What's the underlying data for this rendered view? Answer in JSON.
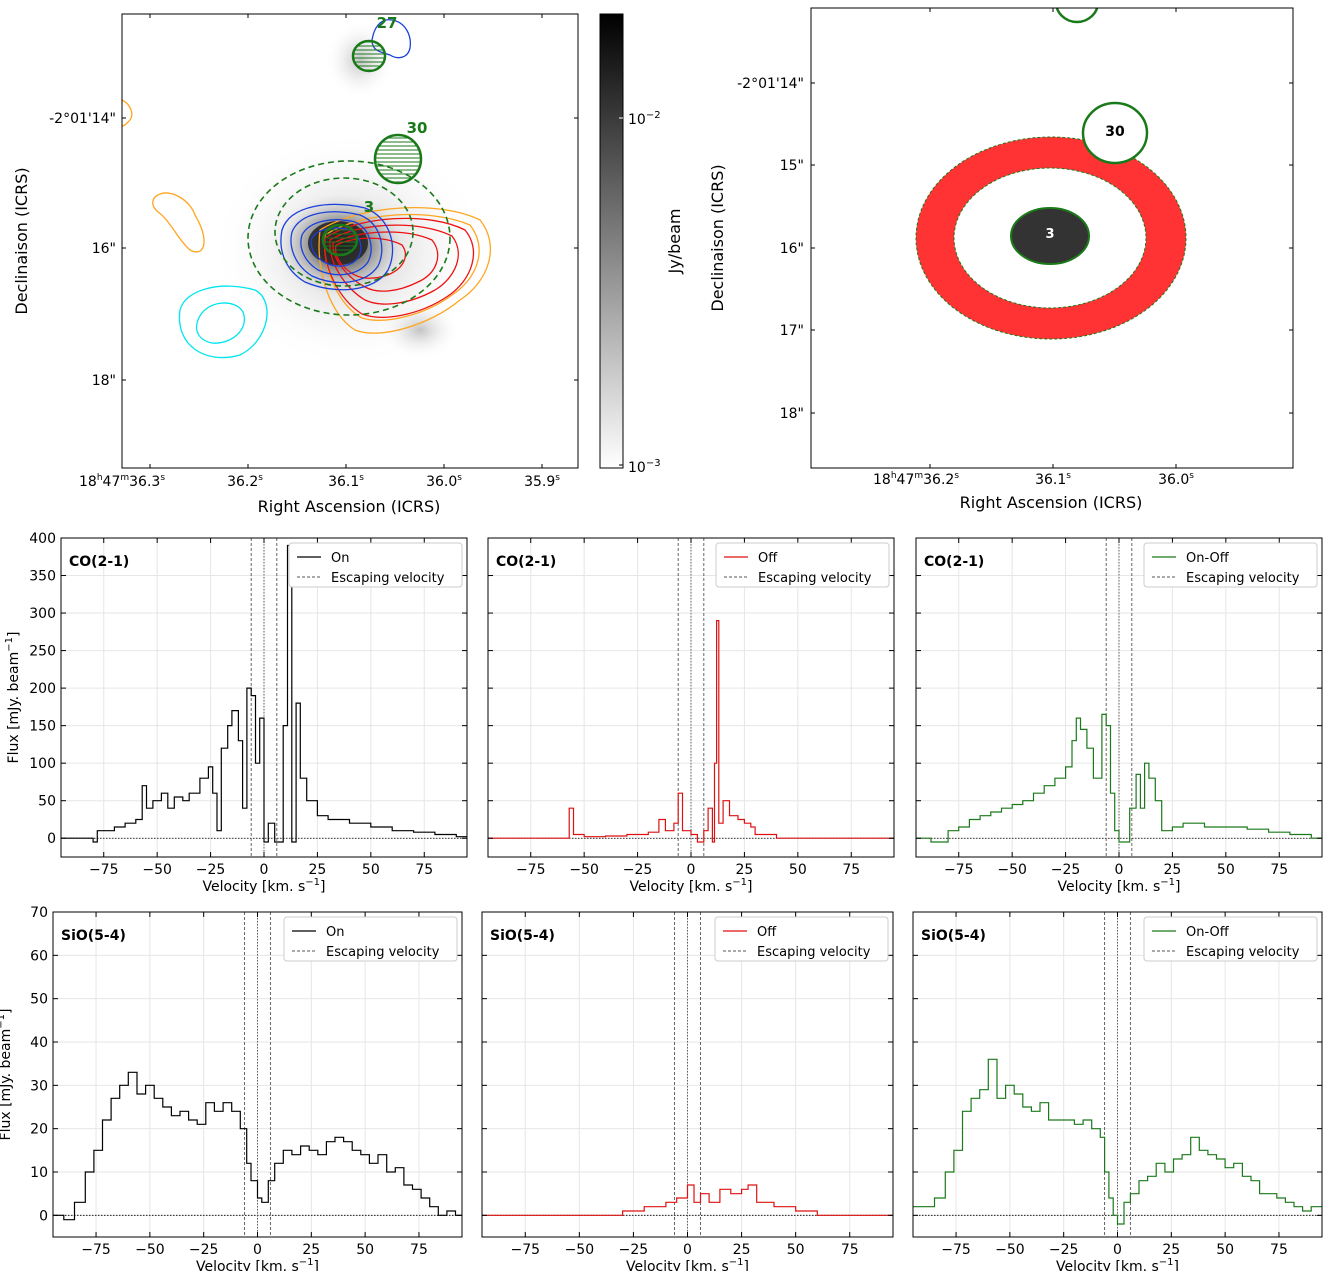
{
  "maps": {
    "left": {
      "xlabel": "Right Ascension (ICRS)",
      "ylabel": "Declinaison (ICRS)",
      "xticks": [
        {
          "main": "18",
          "h": "h",
          "m_val": "47",
          "m": "m",
          "s_val": "36.3",
          "s": "s"
        },
        {
          "main": "36.2",
          "s": "s"
        },
        {
          "main": "36.1",
          "s": "s"
        },
        {
          "main": "36.0",
          "s": "s"
        },
        {
          "main": "35.9",
          "s": "s"
        }
      ],
      "yticks": [
        "-2°01'14\"",
        "16\"",
        "18\""
      ],
      "colorbar": {
        "label": "Jy/beam",
        "tick_hi": "10",
        "tick_hi_exp": "−2",
        "tick_lo": "10",
        "tick_lo_exp": "−3"
      },
      "sources": [
        "27",
        "30",
        "3"
      ]
    },
    "right": {
      "xlabel": "Right Ascension (ICRS)",
      "ylabel": "Declinaison (ICRS)",
      "xticks": [
        {
          "main": "18",
          "h": "h",
          "m_val": "47",
          "m": "m",
          "s_val": "36.2",
          "s": "s"
        },
        {
          "main": "36.1",
          "s": "s"
        },
        {
          "main": "36.0",
          "s": "s"
        }
      ],
      "yticks": [
        "-2°01'14\"",
        "15\"",
        "16\"",
        "17\"",
        "18\""
      ],
      "sources": [
        "30",
        "3"
      ]
    }
  },
  "spectra_common": {
    "xlabel": "Velocity [km. s",
    "xlabel_sup": "−1",
    "xlabel_end": "]",
    "ylabel": "Flux [mJy. beam",
    "ylabel_sup": "−1",
    "ylabel_end": "]",
    "escape_label": "Escaping velocity",
    "xtick_labels": [
      "−75",
      "−50",
      "−25",
      "0",
      "25",
      "50",
      "75"
    ]
  },
  "chart_data": [
    {
      "type": "line",
      "line": "CO(2-1)",
      "series": [
        {
          "name": "On"
        }
      ],
      "color": "#000000",
      "xlim": [
        -95,
        95
      ],
      "ylim": [
        -25,
        400
      ],
      "yticks": [
        "0",
        "50",
        "100",
        "150",
        "200",
        "250",
        "300",
        "350",
        "400"
      ],
      "escape_velocities": [
        -6,
        0,
        6
      ],
      "points": [
        [
          -95,
          0
        ],
        [
          -88,
          0
        ],
        [
          -80,
          -5
        ],
        [
          -78,
          10
        ],
        [
          -70,
          15
        ],
        [
          -65,
          20
        ],
        [
          -60,
          25
        ],
        [
          -57,
          70
        ],
        [
          -55,
          40
        ],
        [
          -52,
          50
        ],
        [
          -48,
          60
        ],
        [
          -45,
          40
        ],
        [
          -42,
          55
        ],
        [
          -38,
          50
        ],
        [
          -35,
          60
        ],
        [
          -30,
          80
        ],
        [
          -26,
          95
        ],
        [
          -24,
          60
        ],
        [
          -22,
          10
        ],
        [
          -20,
          120
        ],
        [
          -17,
          150
        ],
        [
          -15,
          170
        ],
        [
          -12,
          130
        ],
        [
          -10,
          40
        ],
        [
          -8,
          200
        ],
        [
          -6,
          190
        ],
        [
          -4,
          100
        ],
        [
          -2,
          160
        ],
        [
          0,
          -5
        ],
        [
          2,
          20
        ],
        [
          5,
          -5
        ],
        [
          7,
          -5
        ],
        [
          9,
          150
        ],
        [
          11,
          390
        ],
        [
          13,
          -5
        ],
        [
          15,
          180
        ],
        [
          17,
          80
        ],
        [
          20,
          50
        ],
        [
          25,
          30
        ],
        [
          30,
          25
        ],
        [
          40,
          20
        ],
        [
          50,
          15
        ],
        [
          60,
          10
        ],
        [
          70,
          8
        ],
        [
          80,
          5
        ],
        [
          90,
          2
        ],
        [
          95,
          0
        ]
      ]
    },
    {
      "type": "line",
      "line": "CO(2-1)",
      "series": [
        {
          "name": "Off"
        }
      ],
      "color": "#dd1111",
      "xlim": [
        -95,
        95
      ],
      "ylim": [
        -25,
        400
      ],
      "yticks": [],
      "escape_velocities": [
        -6,
        0,
        6
      ],
      "points": [
        [
          -95,
          0
        ],
        [
          -60,
          0
        ],
        [
          -57,
          40
        ],
        [
          -55,
          5
        ],
        [
          -50,
          2
        ],
        [
          -40,
          3
        ],
        [
          -30,
          5
        ],
        [
          -20,
          8
        ],
        [
          -15,
          25
        ],
        [
          -12,
          10
        ],
        [
          -8,
          20
        ],
        [
          -6,
          60
        ],
        [
          -4,
          10
        ],
        [
          0,
          5
        ],
        [
          3,
          -5
        ],
        [
          6,
          10
        ],
        [
          8,
          40
        ],
        [
          10,
          -5
        ],
        [
          11,
          100
        ],
        [
          12,
          290
        ],
        [
          13,
          20
        ],
        [
          15,
          50
        ],
        [
          18,
          30
        ],
        [
          22,
          25
        ],
        [
          25,
          20
        ],
        [
          28,
          15
        ],
        [
          30,
          5
        ],
        [
          40,
          0
        ],
        [
          95,
          0
        ]
      ]
    },
    {
      "type": "line",
      "line": "CO(2-1)",
      "series": [
        {
          "name": "On-Off"
        }
      ],
      "color": "#1a7a1a",
      "xlim": [
        -95,
        95
      ],
      "ylim": [
        -25,
        400
      ],
      "yticks": [],
      "escape_velocities": [
        -6,
        0,
        6
      ],
      "points": [
        [
          -95,
          0
        ],
        [
          -88,
          -5
        ],
        [
          -80,
          10
        ],
        [
          -75,
          15
        ],
        [
          -70,
          25
        ],
        [
          -65,
          30
        ],
        [
          -60,
          35
        ],
        [
          -55,
          40
        ],
        [
          -50,
          45
        ],
        [
          -45,
          50
        ],
        [
          -40,
          60
        ],
        [
          -35,
          70
        ],
        [
          -30,
          80
        ],
        [
          -25,
          95
        ],
        [
          -22,
          130
        ],
        [
          -20,
          160
        ],
        [
          -18,
          145
        ],
        [
          -15,
          120
        ],
        [
          -12,
          80
        ],
        [
          -8,
          165
        ],
        [
          -6,
          150
        ],
        [
          -4,
          60
        ],
        [
          -2,
          10
        ],
        [
          0,
          -5
        ],
        [
          3,
          -5
        ],
        [
          5,
          40
        ],
        [
          8,
          85
        ],
        [
          10,
          40
        ],
        [
          12,
          100
        ],
        [
          14,
          80
        ],
        [
          17,
          50
        ],
        [
          20,
          10
        ],
        [
          25,
          15
        ],
        [
          30,
          20
        ],
        [
          40,
          15
        ],
        [
          50,
          15
        ],
        [
          60,
          12
        ],
        [
          70,
          8
        ],
        [
          80,
          5
        ],
        [
          90,
          0
        ],
        [
          95,
          0
        ]
      ]
    },
    {
      "type": "line",
      "line": "SiO(5-4)",
      "series": [
        {
          "name": "On"
        }
      ],
      "color": "#000000",
      "xlim": [
        -95,
        95
      ],
      "ylim": [
        -5,
        70
      ],
      "yticks": [
        "0",
        "10",
        "20",
        "30",
        "40",
        "50",
        "60",
        "70"
      ],
      "escape_velocities": [
        -6,
        0,
        6
      ],
      "points": [
        [
          -95,
          0
        ],
        [
          -90,
          -1
        ],
        [
          -85,
          3
        ],
        [
          -80,
          10
        ],
        [
          -76,
          15
        ],
        [
          -72,
          22
        ],
        [
          -68,
          27
        ],
        [
          -64,
          30
        ],
        [
          -60,
          33
        ],
        [
          -56,
          28
        ],
        [
          -52,
          30
        ],
        [
          -48,
          27
        ],
        [
          -44,
          25
        ],
        [
          -40,
          23
        ],
        [
          -36,
          24
        ],
        [
          -32,
          22
        ],
        [
          -28,
          21
        ],
        [
          -24,
          26
        ],
        [
          -20,
          24
        ],
        [
          -16,
          26
        ],
        [
          -12,
          24
        ],
        [
          -8,
          20
        ],
        [
          -5,
          12
        ],
        [
          -3,
          8
        ],
        [
          0,
          4
        ],
        [
          2,
          3
        ],
        [
          5,
          8
        ],
        [
          8,
          12
        ],
        [
          12,
          15
        ],
        [
          16,
          14
        ],
        [
          20,
          16
        ],
        [
          24,
          15
        ],
        [
          28,
          14
        ],
        [
          32,
          17
        ],
        [
          36,
          18
        ],
        [
          40,
          17
        ],
        [
          44,
          15
        ],
        [
          48,
          14
        ],
        [
          52,
          12
        ],
        [
          56,
          14
        ],
        [
          60,
          10
        ],
        [
          64,
          11
        ],
        [
          68,
          7
        ],
        [
          72,
          6
        ],
        [
          76,
          4
        ],
        [
          80,
          2
        ],
        [
          84,
          0
        ],
        [
          88,
          1
        ],
        [
          92,
          0
        ],
        [
          95,
          0
        ]
      ]
    },
    {
      "type": "line",
      "line": "SiO(5-4)",
      "series": [
        {
          "name": "Off"
        }
      ],
      "color": "#dd1111",
      "xlim": [
        -95,
        95
      ],
      "ylim": [
        -5,
        70
      ],
      "yticks": [],
      "escape_velocities": [
        -6,
        0,
        6
      ],
      "points": [
        [
          -95,
          0
        ],
        [
          -60,
          0
        ],
        [
          -40,
          0
        ],
        [
          -30,
          1
        ],
        [
          -20,
          2
        ],
        [
          -10,
          3
        ],
        [
          -5,
          4
        ],
        [
          0,
          7
        ],
        [
          3,
          3
        ],
        [
          6,
          5
        ],
        [
          10,
          3
        ],
        [
          15,
          6
        ],
        [
          20,
          5
        ],
        [
          25,
          6
        ],
        [
          28,
          7
        ],
        [
          32,
          3
        ],
        [
          40,
          2
        ],
        [
          50,
          1
        ],
        [
          60,
          0
        ],
        [
          95,
          0
        ]
      ]
    },
    {
      "type": "line",
      "line": "SiO(5-4)",
      "series": [
        {
          "name": "On-Off"
        }
      ],
      "color": "#1a7a1a",
      "xlim": [
        -95,
        95
      ],
      "ylim": [
        -5,
        70
      ],
      "yticks": [],
      "escape_velocities": [
        -6,
        0,
        6
      ],
      "points": [
        [
          -95,
          2
        ],
        [
          -90,
          2
        ],
        [
          -85,
          4
        ],
        [
          -80,
          10
        ],
        [
          -76,
          15
        ],
        [
          -72,
          24
        ],
        [
          -68,
          27
        ],
        [
          -64,
          29
        ],
        [
          -60,
          36
        ],
        [
          -56,
          27
        ],
        [
          -52,
          30
        ],
        [
          -48,
          28
        ],
        [
          -44,
          25
        ],
        [
          -40,
          24
        ],
        [
          -36,
          26
        ],
        [
          -32,
          22
        ],
        [
          -28,
          22
        ],
        [
          -24,
          22
        ],
        [
          -20,
          21
        ],
        [
          -16,
          22
        ],
        [
          -12,
          20
        ],
        [
          -8,
          18
        ],
        [
          -6,
          10
        ],
        [
          -4,
          4
        ],
        [
          -2,
          0
        ],
        [
          0,
          -2
        ],
        [
          3,
          3
        ],
        [
          6,
          5
        ],
        [
          10,
          8
        ],
        [
          14,
          9
        ],
        [
          18,
          12
        ],
        [
          22,
          10
        ],
        [
          26,
          13
        ],
        [
          30,
          14
        ],
        [
          34,
          18
        ],
        [
          38,
          15
        ],
        [
          42,
          14
        ],
        [
          46,
          13
        ],
        [
          50,
          11
        ],
        [
          54,
          12
        ],
        [
          58,
          9
        ],
        [
          62,
          8
        ],
        [
          66,
          5
        ],
        [
          70,
          5
        ],
        [
          74,
          4
        ],
        [
          78,
          3
        ],
        [
          82,
          2
        ],
        [
          86,
          1
        ],
        [
          90,
          2
        ],
        [
          95,
          2
        ]
      ]
    }
  ]
}
